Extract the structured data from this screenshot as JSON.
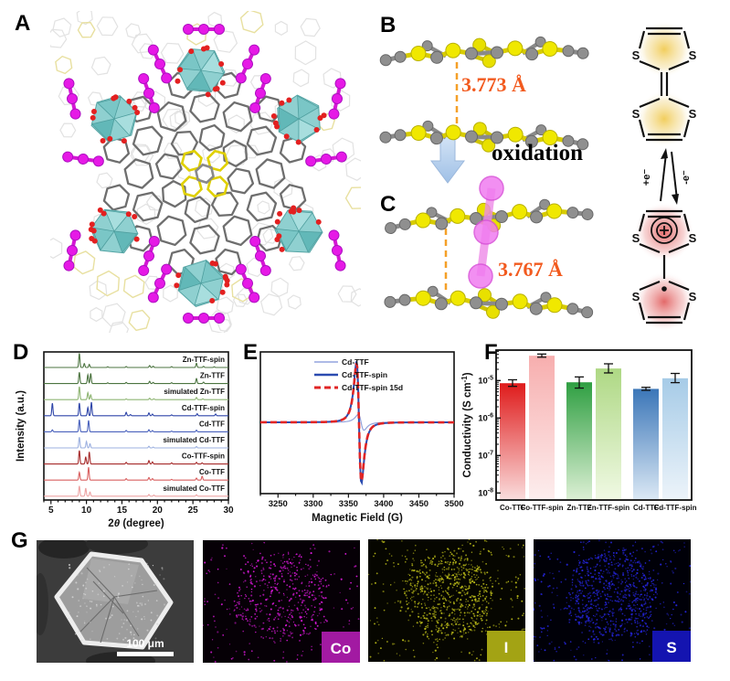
{
  "figure": {
    "panel_labels": {
      "A": "A",
      "B": "B",
      "C": "C",
      "D": "D",
      "E": "E",
      "F": "F",
      "G": "G"
    }
  },
  "panelB": {
    "distance": "3.773 Å",
    "oxidation_label": "oxidation"
  },
  "panelC": {
    "distance": "3.767 Å"
  },
  "redox_scheme": {
    "sulfur_label": "S",
    "forward_label": "+e⁻",
    "reverse_label": "-e⁻",
    "cation_symbol": "+",
    "radical_symbol": "•"
  },
  "panelG": {
    "scale_bar": "100 μm",
    "elements": [
      {
        "symbol": "Co",
        "dot_color": "#d818d8",
        "badge_color": "#a21aa2"
      },
      {
        "symbol": "I",
        "dot_color": "#b8b818",
        "badge_color": "#a3a314"
      },
      {
        "symbol": "S",
        "dot_color": "#2525dd",
        "badge_color": "#1414b0"
      }
    ]
  },
  "chart_data": [
    {
      "id": "pxrd",
      "type": "line",
      "panel": "D",
      "xlabel_pre": "2",
      "xlabel_italic": "θ",
      "xlabel_post": " (degree)",
      "ylabel": "Intensity (a.u.)",
      "xlim": [
        4,
        30
      ],
      "xticks": [
        5,
        10,
        15,
        20,
        25,
        30
      ],
      "grid": false,
      "series": [
        {
          "name": "Zn-TTF-spin",
          "color": "#4c7440",
          "peaks": [
            [
              9.0,
              1.0
            ],
            [
              9.7,
              0.28
            ],
            [
              10.4,
              0.22
            ],
            [
              13.0,
              0.05
            ],
            [
              15.6,
              0.07
            ],
            [
              18.9,
              0.14
            ],
            [
              19.4,
              0.09
            ],
            [
              22.0,
              0.06
            ],
            [
              25.5,
              0.3
            ],
            [
              26.5,
              0.08
            ],
            [
              28.0,
              0.05
            ]
          ]
        },
        {
          "name": "Zn-TTF",
          "color": "#4c7440",
          "peaks": [
            [
              9.0,
              0.8
            ],
            [
              10.2,
              0.62
            ],
            [
              10.6,
              0.72
            ],
            [
              13.0,
              0.05
            ],
            [
              15.6,
              0.08
            ],
            [
              18.9,
              0.16
            ],
            [
              19.4,
              0.08
            ],
            [
              22.0,
              0.06
            ],
            [
              25.5,
              0.36
            ],
            [
              26.5,
              0.1
            ]
          ]
        },
        {
          "name": "simulated Zn-TTF",
          "color": "#8fb573",
          "peaks": [
            [
              9.0,
              0.92
            ],
            [
              10.2,
              0.5
            ],
            [
              10.6,
              0.34
            ],
            [
              15.6,
              0.05
            ],
            [
              18.9,
              0.1
            ],
            [
              19.5,
              0.06
            ],
            [
              25.5,
              0.16
            ],
            [
              26.4,
              0.06
            ]
          ]
        },
        {
          "name": "Cd-TTF-spin",
          "color": "#2e45a8",
          "peaks": [
            [
              5.2,
              0.88
            ],
            [
              9.0,
              0.9
            ],
            [
              10.2,
              0.58
            ],
            [
              10.7,
              0.95
            ],
            [
              15.6,
              0.24
            ],
            [
              16.2,
              0.08
            ],
            [
              18.8,
              0.2
            ],
            [
              19.3,
              0.12
            ],
            [
              22.0,
              0.06
            ],
            [
              25.6,
              0.14
            ],
            [
              28.2,
              0.12
            ]
          ]
        },
        {
          "name": "Cd-TTF",
          "color": "#4a62bd",
          "peaks": [
            [
              5.2,
              0.14
            ],
            [
              9.0,
              0.86
            ],
            [
              10.3,
              0.8
            ],
            [
              15.6,
              0.1
            ],
            [
              18.8,
              0.15
            ],
            [
              19.3,
              0.09
            ],
            [
              22.0,
              0.05
            ],
            [
              25.5,
              0.12
            ]
          ]
        },
        {
          "name": "simulated Cd-TTF",
          "color": "#9db1e0",
          "peaks": [
            [
              9.0,
              0.76
            ],
            [
              10.0,
              0.46
            ],
            [
              10.5,
              0.3
            ],
            [
              18.8,
              0.12
            ],
            [
              19.4,
              0.06
            ],
            [
              25.5,
              0.1
            ]
          ]
        },
        {
          "name": "Co-TTF-spin",
          "color": "#a62b2b",
          "peaks": [
            [
              9.0,
              0.95
            ],
            [
              9.9,
              0.5
            ],
            [
              10.4,
              0.85
            ],
            [
              15.6,
              0.12
            ],
            [
              18.8,
              0.24
            ],
            [
              19.3,
              0.15
            ],
            [
              22.0,
              0.08
            ],
            [
              25.5,
              0.12
            ],
            [
              26.3,
              0.08
            ]
          ]
        },
        {
          "name": "Co-TTF",
          "color": "#d96060",
          "peaks": [
            [
              9.0,
              0.55
            ],
            [
              10.3,
              0.9
            ],
            [
              15.6,
              0.1
            ],
            [
              18.8,
              0.18
            ],
            [
              19.3,
              0.1
            ],
            [
              22.0,
              0.05
            ],
            [
              25.5,
              0.14
            ],
            [
              26.3,
              0.28
            ]
          ]
        },
        {
          "name": "simulated Co-TTF",
          "color": "#eda4a4",
          "peaks": [
            [
              9.0,
              0.72
            ],
            [
              9.9,
              0.56
            ],
            [
              10.5,
              0.3
            ],
            [
              18.8,
              0.12
            ],
            [
              19.5,
              0.08
            ],
            [
              25.5,
              0.1
            ]
          ]
        }
      ]
    },
    {
      "id": "epr",
      "type": "line",
      "panel": "E",
      "xlabel": "Magnetic Field (G)",
      "xlim": [
        3225,
        3500
      ],
      "xticks": [
        3250,
        3300,
        3350,
        3400,
        3450,
        3500
      ],
      "legend_position": "top-right",
      "series": [
        {
          "name": "Cd-TTF",
          "color": "#93a4dd",
          "dash": "none",
          "width": 1.2,
          "amplitude": 0.13,
          "center": 3368,
          "hwhm": 7
        },
        {
          "name": "Cd-TTF-spin",
          "color": "#2b4bb0",
          "dash": "none",
          "width": 2.0,
          "amplitude": 1.0,
          "center": 3365,
          "hwhm": 6
        },
        {
          "name": "Cd-TTF-spin 15d",
          "color": "#e02525",
          "dash": "7 4",
          "width": 2.6,
          "amplitude": 0.97,
          "center": 3365,
          "hwhm": 6
        }
      ]
    },
    {
      "id": "conductivity",
      "type": "bar",
      "panel": "F",
      "ylabel_main": "Conductivity (S cm",
      "ylabel_sup": "-1",
      "ylabel_close": ")",
      "yscale": "log",
      "ytick_exponents": [
        -5,
        -6,
        -7,
        -8
      ],
      "ylim": [
        6.5e-09,
        6.5e-05
      ],
      "categories": [
        "Co-TTF",
        "Co-TTF-spin",
        "Zn-TTF",
        "Zn-TTF-spin",
        "Cd-TTF",
        "Cd-TTF-spin"
      ],
      "values": [
        8.5e-06,
        4.6e-05,
        9e-06,
        2.1e-05,
        6e-06,
        1.15e-05
      ],
      "error_low": [
        7e-06,
        4.2e-05,
        6.3e-06,
        1.6e-05,
        5.5e-06,
        8.8e-06
      ],
      "error_high": [
        1.05e-05,
        5.1e-05,
        1.25e-05,
        2.8e-05,
        6.6e-06,
        1.55e-05
      ],
      "bar_colors": [
        {
          "top": "#df1b1b",
          "bottom": "#fadddd"
        },
        {
          "top": "#f7aeae",
          "bottom": "#fdeeee"
        },
        {
          "top": "#2f9f42",
          "bottom": "#ddf0d5"
        },
        {
          "top": "#aed884",
          "bottom": "#f0f9e4"
        },
        {
          "top": "#3b76b8",
          "bottom": "#dce9f5"
        },
        {
          "top": "#a6cbe7",
          "bottom": "#edf4fa"
        }
      ]
    }
  ]
}
